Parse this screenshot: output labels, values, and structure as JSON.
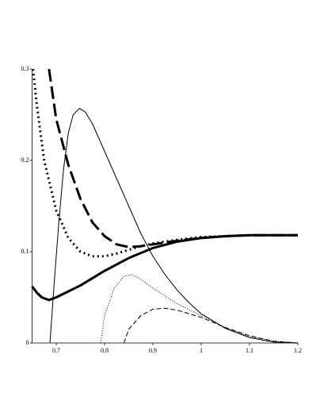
{
  "chart_data": {
    "type": "line",
    "xlim": [
      0.65,
      1.2
    ],
    "ylim": [
      0,
      0.3
    ],
    "xticks": [
      0.7,
      0.8,
      0.9,
      1.0,
      1.1,
      1.2
    ],
    "yticks": [
      0,
      0.1,
      0.2,
      0.3
    ],
    "series": [
      {
        "color": "#000",
        "width": 1,
        "dash": "none",
        "x": [
          0.687,
          0.695,
          0.705,
          0.715,
          0.725,
          0.735,
          0.748,
          0.76,
          0.775,
          0.8,
          0.825,
          0.85,
          0.875,
          0.9,
          0.925,
          0.95,
          0.975,
          1.0,
          1.05,
          1.1,
          1.15,
          1.2
        ],
        "values": [
          0,
          0.06,
          0.13,
          0.19,
          0.23,
          0.25,
          0.257,
          0.253,
          0.24,
          0.21,
          0.18,
          0.15,
          0.12,
          0.095,
          0.075,
          0.058,
          0.044,
          0.032,
          0.016,
          0.006,
          0.001,
          0
        ]
      },
      {
        "color": "#000",
        "width": 3,
        "dash": "none",
        "x": [
          0.65,
          0.66,
          0.67,
          0.685,
          0.7,
          0.75,
          0.8,
          0.85,
          0.9,
          0.95,
          1.0,
          1.05,
          1.1,
          1.15,
          1.2
        ],
        "values": [
          0.062,
          0.055,
          0.05,
          0.047,
          0.05,
          0.063,
          0.079,
          0.093,
          0.104,
          0.111,
          0.115,
          0.117,
          0.118,
          0.118,
          0.118
        ]
      },
      {
        "color": "#000",
        "width": 3,
        "dash": "2 4",
        "x": [
          0.652,
          0.66,
          0.675,
          0.7,
          0.725,
          0.75,
          0.775,
          0.8,
          0.825,
          0.85,
          0.875,
          0.9,
          0.95,
          1.0,
          1.05
        ],
        "values": [
          0.3,
          0.26,
          0.2,
          0.145,
          0.115,
          0.1,
          0.095,
          0.095,
          0.098,
          0.102,
          0.106,
          0.109,
          0.113,
          0.116,
          0.117
        ]
      },
      {
        "color": "#000",
        "width": 3,
        "dash": "16 6",
        "x": [
          0.685,
          0.7,
          0.725,
          0.75,
          0.775,
          0.8,
          0.825,
          0.85,
          0.875,
          0.9,
          0.95,
          1.0,
          1.05,
          1.1,
          1.15,
          1.2
        ],
        "values": [
          0.3,
          0.245,
          0.195,
          0.158,
          0.132,
          0.117,
          0.108,
          0.105,
          0.106,
          0.108,
          0.112,
          0.115,
          0.117,
          0.118,
          0.118,
          0.118
        ]
      },
      {
        "color": "#000",
        "width": 1,
        "dash": "1 2",
        "x": [
          0.792,
          0.8,
          0.82,
          0.84,
          0.855,
          0.875,
          0.9,
          0.95,
          1.0,
          1.05,
          1.1,
          1.15,
          1.2
        ],
        "values": [
          0,
          0.03,
          0.06,
          0.073,
          0.075,
          0.07,
          0.06,
          0.043,
          0.03,
          0.017,
          0.007,
          0.002,
          0
        ]
      },
      {
        "color": "#000",
        "width": 1,
        "dash": "6 3",
        "x": [
          0.84,
          0.85,
          0.875,
          0.9,
          0.925,
          0.95,
          1.0,
          1.05,
          1.1,
          1.15,
          1.2
        ],
        "values": [
          0,
          0.015,
          0.03,
          0.037,
          0.038,
          0.036,
          0.028,
          0.017,
          0.008,
          0.002,
          0
        ]
      }
    ]
  }
}
